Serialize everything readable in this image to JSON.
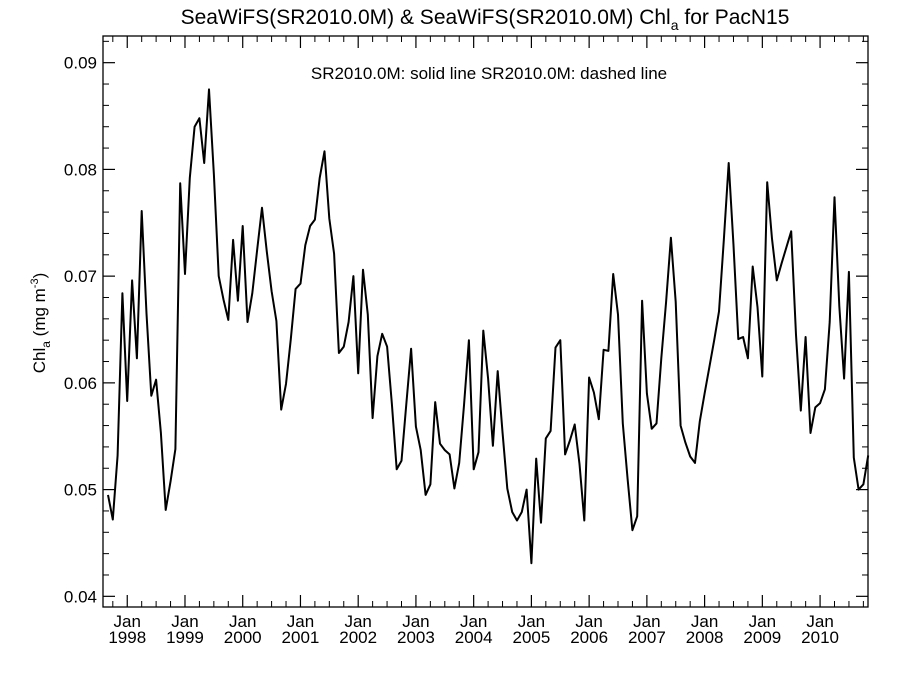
{
  "chart_data": {
    "type": "line",
    "title": {
      "prefix": "SeaWiFS(SR2010.0M) & SeaWiFS(SR2010.0M)  Chl",
      "subscript": "a",
      "suffix": " for PacN15"
    },
    "ylabel": {
      "prefix": "Chl",
      "subscript": "a",
      "middle": " (mg m",
      "superscript": "-3",
      "suffix": ")"
    },
    "legend_text": "SR2010.0M: solid line   SR2010.0M: dashed line",
    "legend_placement": "top-center",
    "grid": false,
    "ylim": [
      0.039,
      0.0925
    ],
    "xlim": [
      1997.58,
      2010.83
    ],
    "yticks": [
      0.04,
      0.05,
      0.06,
      0.07,
      0.08,
      0.09
    ],
    "ytick_labels": [
      "0.04",
      "0.05",
      "0.06",
      "0.07",
      "0.08",
      "0.09"
    ],
    "xticks": [
      {
        "value": 1998,
        "month": "Jan",
        "year": "1998"
      },
      {
        "value": 1999,
        "month": "Jan",
        "year": "1999"
      },
      {
        "value": 2000,
        "month": "Jan",
        "year": "2000"
      },
      {
        "value": 2001,
        "month": "Jan",
        "year": "2001"
      },
      {
        "value": 2002,
        "month": "Jan",
        "year": "2002"
      },
      {
        "value": 2003,
        "month": "Jan",
        "year": "2003"
      },
      {
        "value": 2004,
        "month": "Jan",
        "year": "2004"
      },
      {
        "value": 2005,
        "month": "Jan",
        "year": "2005"
      },
      {
        "value": 2006,
        "month": "Jan",
        "year": "2006"
      },
      {
        "value": 2007,
        "month": "Jan",
        "year": "2007"
      },
      {
        "value": 2008,
        "month": "Jan",
        "year": "2008"
      },
      {
        "value": 2009,
        "month": "Jan",
        "year": "2009"
      },
      {
        "value": 2010,
        "month": "Jan",
        "year": "2010"
      }
    ],
    "series": [
      {
        "style": "solid",
        "color": "#000000",
        "start": "1997-09",
        "step": "monthly",
        "values": [
          0.0495,
          0.0472,
          0.0532,
          0.0684,
          0.0583,
          0.0696,
          0.0623,
          0.0761,
          0.0665,
          0.0588,
          0.0603,
          0.0553,
          0.0481,
          0.0508,
          0.0538,
          0.0787,
          0.0702,
          0.0792,
          0.084,
          0.0848,
          0.0806,
          0.0875,
          0.0795,
          0.07,
          0.0678,
          0.0659,
          0.0734,
          0.0677,
          0.0747,
          0.0657,
          0.0684,
          0.0725,
          0.0764,
          0.0723,
          0.0686,
          0.0658,
          0.0575,
          0.0599,
          0.0641,
          0.0688,
          0.0693,
          0.0729,
          0.0747,
          0.0753,
          0.0792,
          0.0817,
          0.0754,
          0.0721,
          0.0628,
          0.0634,
          0.0657,
          0.07,
          0.0609,
          0.0706,
          0.0664,
          0.0567,
          0.0625,
          0.0646,
          0.0634,
          0.058,
          0.0519,
          0.0527,
          0.058,
          0.0632,
          0.0559,
          0.0537,
          0.0495,
          0.0505,
          0.0582,
          0.0543,
          0.0537,
          0.0533,
          0.0501,
          0.0525,
          0.0579,
          0.064,
          0.0519,
          0.0535,
          0.0649,
          0.0604,
          0.0541,
          0.0611,
          0.0554,
          0.0501,
          0.0479,
          0.0471,
          0.0479,
          0.05,
          0.0431,
          0.0529,
          0.0469,
          0.0548,
          0.0555,
          0.0633,
          0.064,
          0.0533,
          0.0546,
          0.0561,
          0.0524,
          0.0471,
          0.0605,
          0.0591,
          0.0566,
          0.0631,
          0.063,
          0.0702,
          0.0664,
          0.0562,
          0.051,
          0.0462,
          0.0475,
          0.0677,
          0.059,
          0.0557,
          0.0562,
          0.0623,
          0.0676,
          0.0736,
          0.0676,
          0.056,
          0.0544,
          0.0531,
          0.0525,
          0.0564,
          0.059,
          0.0615,
          0.064,
          0.0667,
          0.0735,
          0.0806,
          0.0729,
          0.0641,
          0.0643,
          0.0623,
          0.0709,
          0.0671,
          0.0606,
          0.0788,
          0.0735,
          0.0696,
          0.0712,
          0.0727,
          0.0742,
          0.0645,
          0.0574,
          0.0643,
          0.0553,
          0.0577,
          0.0581,
          0.0594,
          0.0657,
          0.0774,
          0.0672,
          0.0604,
          0.0704,
          0.053,
          0.05,
          0.0505,
          0.0532
        ]
      }
    ]
  }
}
